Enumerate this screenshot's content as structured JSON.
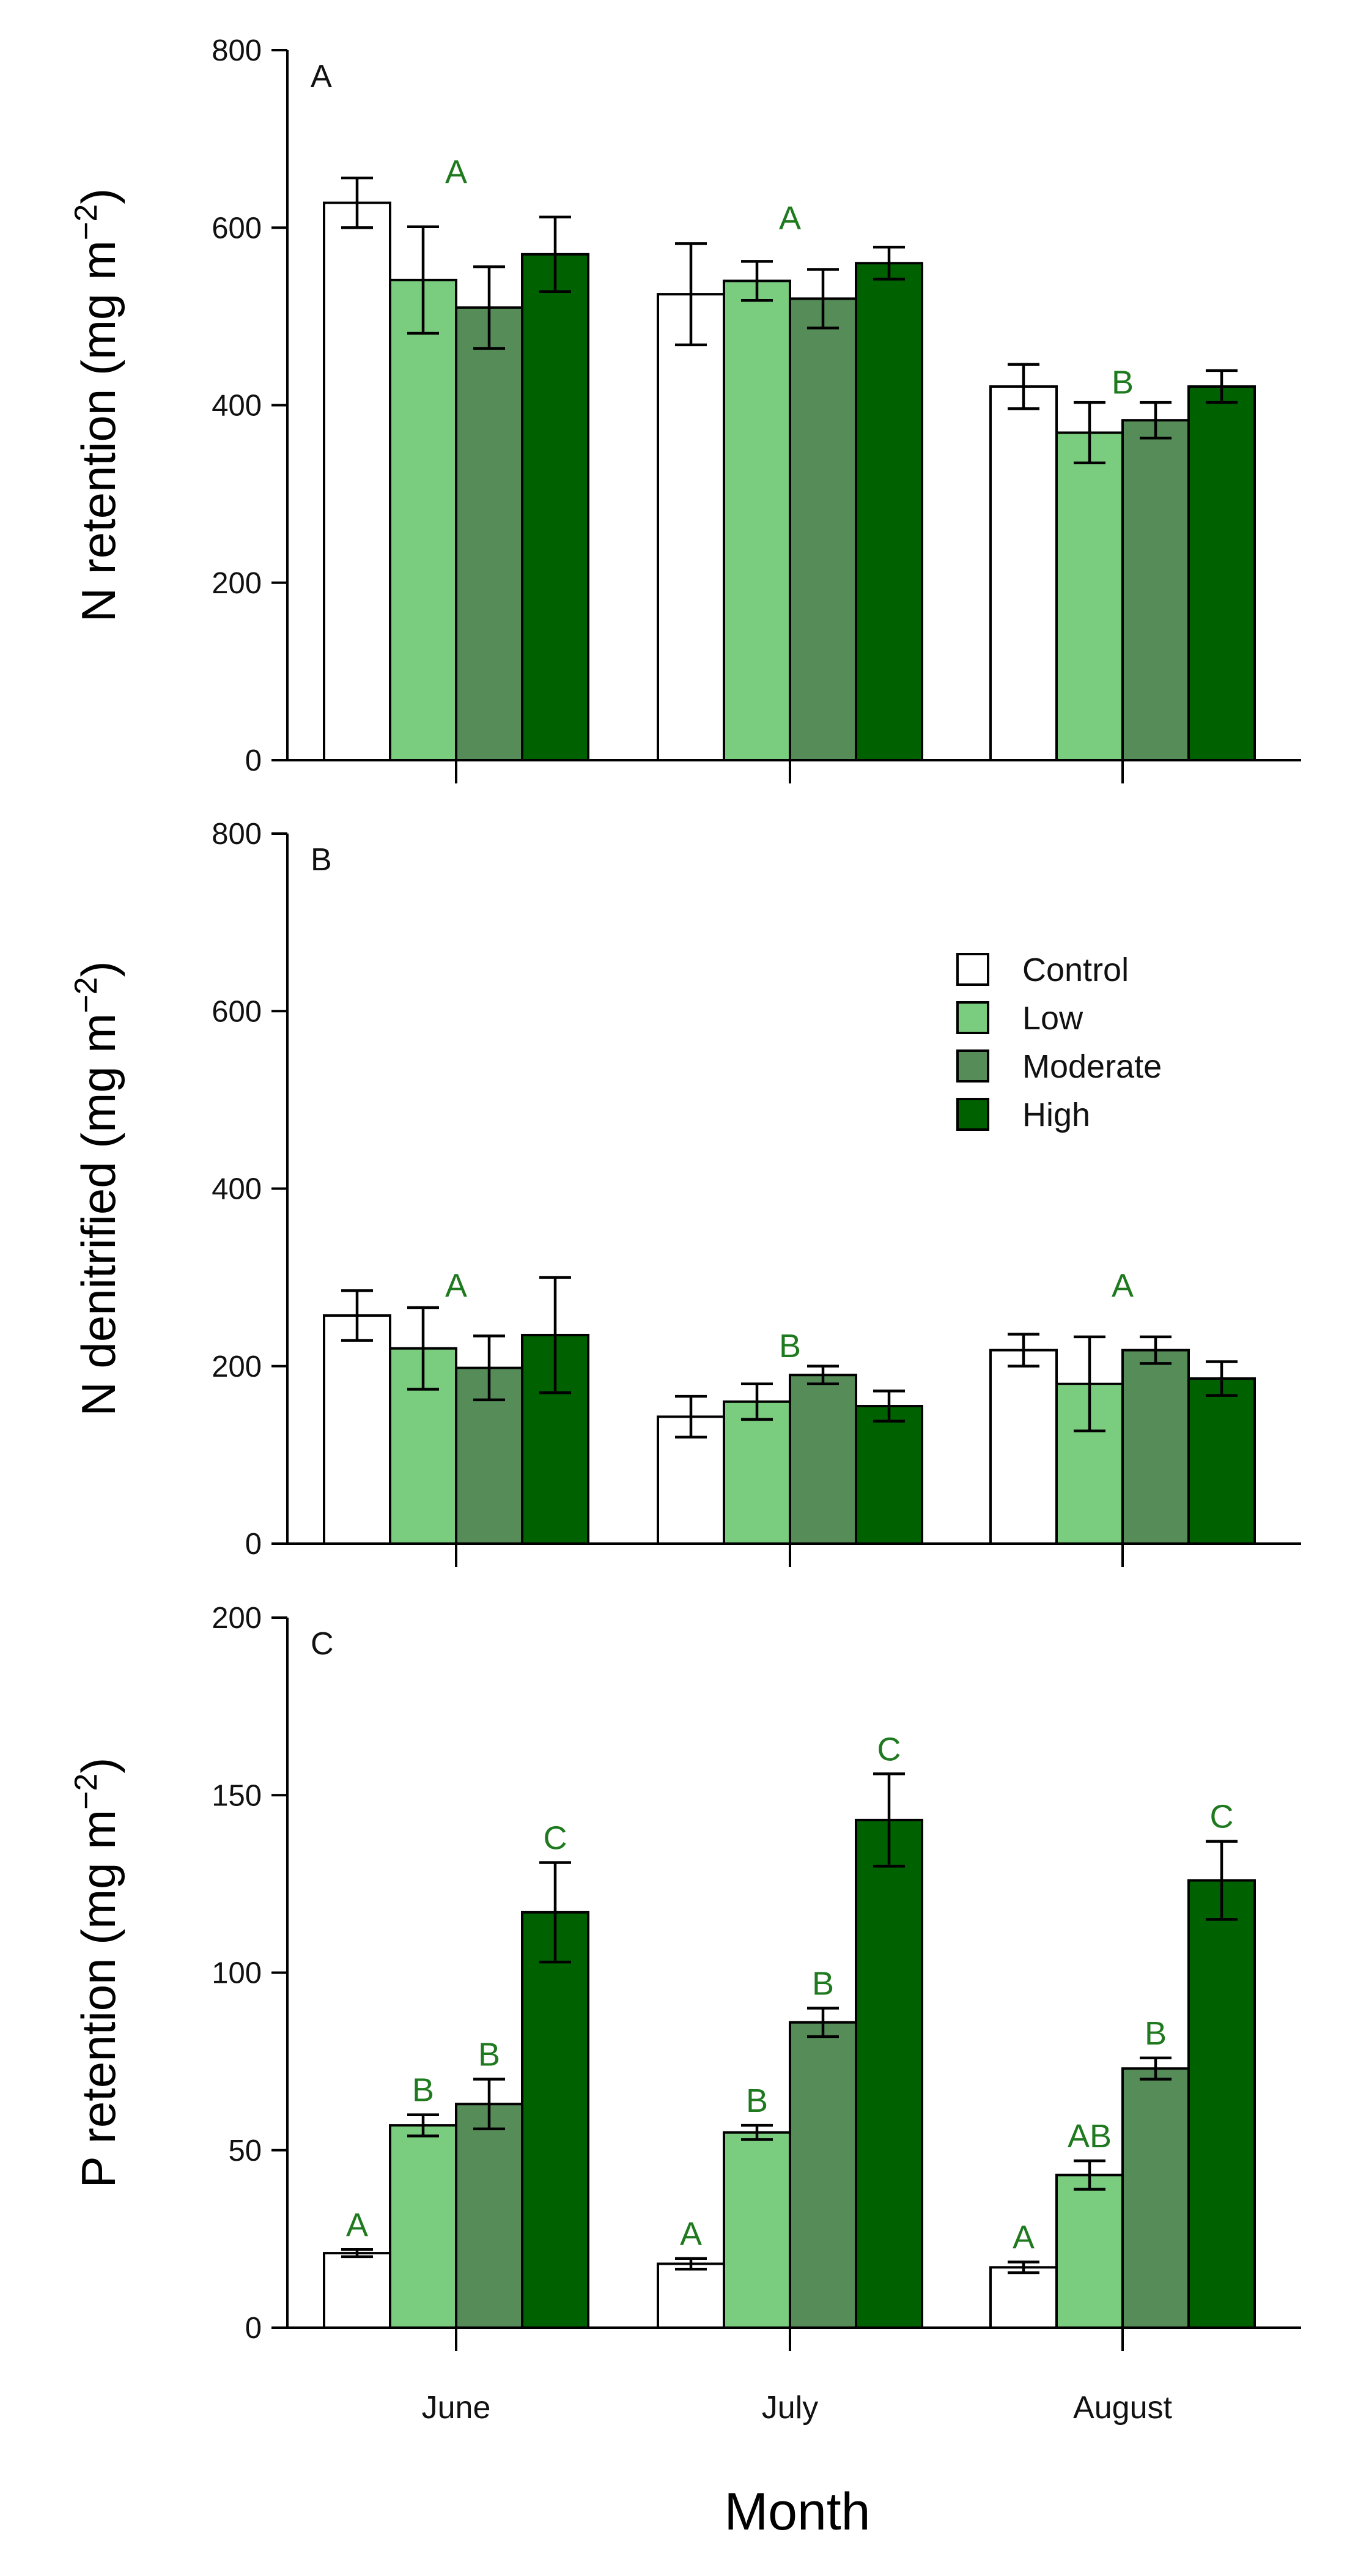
{
  "chart_data": [
    {
      "panel": "A",
      "type": "bar",
      "title": "",
      "ylabel_main": "N retention",
      "ylabel_unit": "(mg m",
      "ylabel_sup": "−2",
      "ylabel_close": ")",
      "xlabel": "",
      "ylim": [
        0,
        800
      ],
      "yticks": [
        0,
        200,
        400,
        600,
        800
      ],
      "ytick_labels": [
        "0",
        "200",
        "400",
        "600",
        "800"
      ],
      "categories": [
        "June",
        "July",
        "August"
      ],
      "series": [
        {
          "name": "Control",
          "values": [
            628,
            525,
            421
          ],
          "errors": [
            28,
            57,
            25
          ]
        },
        {
          "name": "Low",
          "values": [
            541,
            540,
            369
          ],
          "errors": [
            60,
            22,
            34
          ]
        },
        {
          "name": "Moderate",
          "values": [
            510,
            520,
            383
          ],
          "errors": [
            46,
            33,
            20
          ]
        },
        {
          "name": "High",
          "values": [
            570,
            560,
            421
          ],
          "errors": [
            42,
            18,
            18
          ]
        }
      ],
      "group_letters": [
        {
          "category": "June",
          "text": "A",
          "y": 650
        },
        {
          "category": "July",
          "text": "A",
          "y": 598
        },
        {
          "category": "August",
          "text": "B",
          "y": 413
        }
      ],
      "bar_letters": []
    },
    {
      "panel": "B",
      "type": "bar",
      "title": "",
      "ylabel_main": "N denitrified",
      "ylabel_unit": "(mg m",
      "ylabel_sup": "−2",
      "ylabel_close": ")",
      "xlabel": "",
      "ylim": [
        0,
        800
      ],
      "yticks": [
        0,
        200,
        400,
        600,
        800
      ],
      "ytick_labels": [
        "0",
        "200",
        "400",
        "600",
        "800"
      ],
      "categories": [
        "June",
        "July",
        "August"
      ],
      "series": [
        {
          "name": "Control",
          "values": [
            257,
            143,
            218
          ],
          "errors": [
            28,
            23,
            18
          ]
        },
        {
          "name": "Low",
          "values": [
            220,
            160,
            180
          ],
          "errors": [
            46,
            20,
            53
          ]
        },
        {
          "name": "Moderate",
          "values": [
            198,
            190,
            218
          ],
          "errors": [
            36,
            10,
            15
          ]
        },
        {
          "name": "High",
          "values": [
            235,
            155,
            186
          ],
          "errors": [
            65,
            17,
            19
          ]
        }
      ],
      "group_letters": [
        {
          "category": "June",
          "text": "A",
          "y": 278
        },
        {
          "category": "July",
          "text": "B",
          "y": 210
        },
        {
          "category": "August",
          "text": "A",
          "y": 278
        }
      ],
      "bar_letters": []
    },
    {
      "panel": "C",
      "type": "bar",
      "title": "",
      "ylabel_main": "P retention",
      "ylabel_unit": "(mg m",
      "ylabel_sup": "−2",
      "ylabel_close": ")",
      "xlabel": "Month",
      "ylim": [
        0,
        200
      ],
      "yticks": [
        0,
        50,
        100,
        150,
        200
      ],
      "ytick_labels": [
        "0",
        "50",
        "100",
        "150",
        "200"
      ],
      "categories": [
        "June",
        "July",
        "August"
      ],
      "series": [
        {
          "name": "Control",
          "values": [
            21,
            18,
            17
          ],
          "errors": [
            1,
            1.5,
            1.5
          ]
        },
        {
          "name": "Low",
          "values": [
            57,
            55,
            43
          ],
          "errors": [
            3,
            2,
            4
          ]
        },
        {
          "name": "Moderate",
          "values": [
            63,
            86,
            73
          ],
          "errors": [
            7,
            4,
            3
          ]
        },
        {
          "name": "High",
          "values": [
            117,
            143,
            126
          ],
          "errors": [
            14,
            13,
            11
          ]
        }
      ],
      "group_letters": [],
      "bar_letters": [
        [
          "A",
          "A",
          "A"
        ],
        [
          "B",
          "B",
          "AB"
        ],
        [
          "B",
          "B",
          "B"
        ],
        [
          "C",
          "C",
          "C"
        ]
      ]
    }
  ],
  "panel_labels": [
    "A",
    "B",
    "C"
  ],
  "legend": {
    "items": [
      {
        "label": "Control",
        "color": "#ffffff"
      },
      {
        "label": "Low",
        "color": "#7acc7e"
      },
      {
        "label": "Moderate",
        "color": "#568c58"
      },
      {
        "label": "High",
        "color": "#006100"
      }
    ]
  },
  "colors": {
    "Control": "#ffffff",
    "Low": "#7acc7e",
    "Moderate": "#568c58",
    "High": "#006100",
    "significance": "#1f7a1f"
  },
  "x_axis_title": "Month"
}
